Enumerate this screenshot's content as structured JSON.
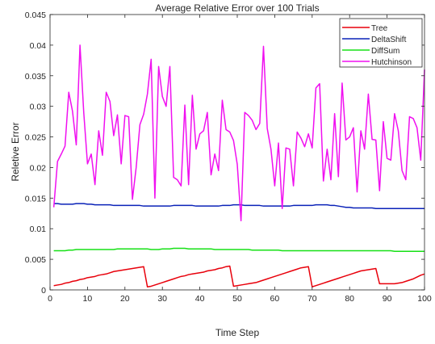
{
  "chart_data": {
    "type": "line",
    "title": "Average Relative Error over 100 Trials",
    "xlabel": "Time Step",
    "ylabel": "Reletive Error",
    "xlim": [
      0,
      100
    ],
    "ylim": [
      0,
      0.045
    ],
    "xticks": [
      0,
      10,
      20,
      30,
      40,
      50,
      60,
      70,
      80,
      90,
      100
    ],
    "yticks": [
      0,
      0.005,
      0.01,
      0.015,
      0.02,
      0.025,
      0.03,
      0.035,
      0.04,
      0.045
    ],
    "grid": false,
    "legend_position": "top-right",
    "x": [
      1,
      2,
      3,
      4,
      5,
      6,
      7,
      8,
      9,
      10,
      11,
      12,
      13,
      14,
      15,
      16,
      17,
      18,
      19,
      20,
      21,
      22,
      23,
      24,
      25,
      26,
      27,
      28,
      29,
      30,
      31,
      32,
      33,
      34,
      35,
      36,
      37,
      38,
      39,
      40,
      41,
      42,
      43,
      44,
      45,
      46,
      47,
      48,
      49,
      50,
      51,
      52,
      53,
      54,
      55,
      56,
      57,
      58,
      59,
      60,
      61,
      62,
      63,
      64,
      65,
      66,
      67,
      68,
      69,
      70,
      71,
      72,
      73,
      74,
      75,
      76,
      77,
      78,
      79,
      80,
      81,
      82,
      83,
      84,
      85,
      86,
      87,
      88,
      89,
      90,
      91,
      92,
      93,
      94,
      95,
      96,
      97,
      98,
      99,
      100
    ],
    "series": [
      {
        "name": "Tree",
        "color": "#e8000b",
        "values": [
          0.0007,
          0.0008,
          0.0009,
          0.0011,
          0.0012,
          0.0014,
          0.0015,
          0.0017,
          0.0018,
          0.002,
          0.0021,
          0.0022,
          0.0024,
          0.0025,
          0.0026,
          0.0028,
          0.003,
          0.0031,
          0.0032,
          0.0033,
          0.0034,
          0.0035,
          0.0036,
          0.0037,
          0.0038,
          0.0005,
          0.0006,
          0.0008,
          0.001,
          0.0012,
          0.0014,
          0.0016,
          0.0018,
          0.002,
          0.0022,
          0.0023,
          0.0025,
          0.0026,
          0.0027,
          0.0028,
          0.0029,
          0.0031,
          0.0032,
          0.0033,
          0.0035,
          0.0036,
          0.0038,
          0.0039,
          0.0006,
          0.0007,
          0.0008,
          0.0009,
          0.001,
          0.0011,
          0.0012,
          0.0014,
          0.0016,
          0.0018,
          0.002,
          0.0022,
          0.0024,
          0.0026,
          0.0028,
          0.003,
          0.0032,
          0.0034,
          0.0036,
          0.0037,
          0.0038,
          0.0005,
          0.0007,
          0.0009,
          0.0011,
          0.0013,
          0.0015,
          0.0017,
          0.0019,
          0.0021,
          0.0023,
          0.0025,
          0.0027,
          0.0029,
          0.0031,
          0.0032,
          0.0033,
          0.0034,
          0.0035,
          0.001,
          0.001,
          0.001,
          0.001,
          0.001,
          0.0011,
          0.0012,
          0.0014,
          0.0016,
          0.0018,
          0.0021,
          0.0024,
          0.0026
        ]
      },
      {
        "name": "DeltaShift",
        "color": "#0a22b8",
        "values": [
          0.0141,
          0.0141,
          0.014,
          0.014,
          0.014,
          0.014,
          0.0141,
          0.0141,
          0.0141,
          0.014,
          0.014,
          0.0139,
          0.0139,
          0.0139,
          0.0139,
          0.0139,
          0.0138,
          0.0138,
          0.0138,
          0.0138,
          0.0138,
          0.0138,
          0.0138,
          0.0138,
          0.0137,
          0.0137,
          0.0137,
          0.0137,
          0.0137,
          0.0137,
          0.0137,
          0.0137,
          0.0138,
          0.0138,
          0.0138,
          0.0138,
          0.0138,
          0.0138,
          0.0137,
          0.0137,
          0.0137,
          0.0137,
          0.0137,
          0.0137,
          0.0137,
          0.0138,
          0.0138,
          0.0138,
          0.0139,
          0.0139,
          0.0139,
          0.0138,
          0.0138,
          0.0138,
          0.0138,
          0.0138,
          0.0137,
          0.0137,
          0.0137,
          0.0137,
          0.0137,
          0.0137,
          0.0137,
          0.0137,
          0.0138,
          0.0138,
          0.0138,
          0.0138,
          0.0138,
          0.0138,
          0.0139,
          0.0139,
          0.0139,
          0.0139,
          0.0138,
          0.0138,
          0.0137,
          0.0136,
          0.0135,
          0.0135,
          0.0134,
          0.0134,
          0.0134,
          0.0134,
          0.0134,
          0.0134,
          0.0133,
          0.0133,
          0.0133,
          0.0133,
          0.0133,
          0.0133,
          0.0133,
          0.0133,
          0.0133,
          0.0133,
          0.0133,
          0.0133,
          0.0133,
          0.0133
        ]
      },
      {
        "name": "DiffSum",
        "color": "#16e016",
        "values": [
          0.0064,
          0.0064,
          0.0064,
          0.0064,
          0.0065,
          0.0065,
          0.0066,
          0.0066,
          0.0066,
          0.0066,
          0.0066,
          0.0066,
          0.0066,
          0.0066,
          0.0066,
          0.0066,
          0.0066,
          0.0067,
          0.0067,
          0.0067,
          0.0067,
          0.0067,
          0.0067,
          0.0067,
          0.0067,
          0.0067,
          0.0066,
          0.0066,
          0.0066,
          0.0067,
          0.0067,
          0.0067,
          0.0068,
          0.0068,
          0.0068,
          0.0068,
          0.0067,
          0.0067,
          0.0067,
          0.0067,
          0.0067,
          0.0067,
          0.0067,
          0.0066,
          0.0066,
          0.0066,
          0.0066,
          0.0066,
          0.0066,
          0.0066,
          0.0066,
          0.0066,
          0.0066,
          0.0065,
          0.0065,
          0.0065,
          0.0065,
          0.0065,
          0.0065,
          0.0065,
          0.0065,
          0.0064,
          0.0064,
          0.0064,
          0.0064,
          0.0064,
          0.0064,
          0.0064,
          0.0064,
          0.0064,
          0.0064,
          0.0064,
          0.0064,
          0.0064,
          0.0064,
          0.0064,
          0.0064,
          0.0064,
          0.0064,
          0.0064,
          0.0064,
          0.0064,
          0.0064,
          0.0064,
          0.0064,
          0.0064,
          0.0064,
          0.0064,
          0.0064,
          0.0064,
          0.0064,
          0.0063,
          0.0063,
          0.0063,
          0.0063,
          0.0063,
          0.0063,
          0.0063,
          0.0063,
          0.0063
        ]
      },
      {
        "name": "Hutchinson",
        "color": "#f010f0",
        "values": [
          0.0135,
          0.021,
          0.0222,
          0.0235,
          0.0323,
          0.0292,
          0.0237,
          0.04,
          0.029,
          0.0206,
          0.0222,
          0.0172,
          0.026,
          0.022,
          0.0323,
          0.0308,
          0.0252,
          0.0286,
          0.0206,
          0.0285,
          0.0283,
          0.0148,
          0.02,
          0.027,
          0.0287,
          0.032,
          0.0377,
          0.015,
          0.0365,
          0.0316,
          0.03,
          0.0365,
          0.0184,
          0.018,
          0.017,
          0.0302,
          0.0172,
          0.0318,
          0.023,
          0.0255,
          0.026,
          0.029,
          0.0188,
          0.0222,
          0.0195,
          0.031,
          0.0262,
          0.0258,
          0.0244,
          0.0205,
          0.0113,
          0.029,
          0.0285,
          0.0277,
          0.0262,
          0.0272,
          0.0398,
          0.0264,
          0.023,
          0.017,
          0.024,
          0.0133,
          0.0232,
          0.023,
          0.017,
          0.0258,
          0.0248,
          0.0234,
          0.0255,
          0.0232,
          0.033,
          0.0337,
          0.0178,
          0.023,
          0.018,
          0.0288,
          0.0185,
          0.0338,
          0.0245,
          0.025,
          0.0265,
          0.016,
          0.026,
          0.023,
          0.032,
          0.0246,
          0.0245,
          0.0162,
          0.0275,
          0.0215,
          0.0212,
          0.0288,
          0.026,
          0.0195,
          0.018,
          0.0283,
          0.028,
          0.0265,
          0.0212,
          0.036
        ]
      }
    ]
  }
}
